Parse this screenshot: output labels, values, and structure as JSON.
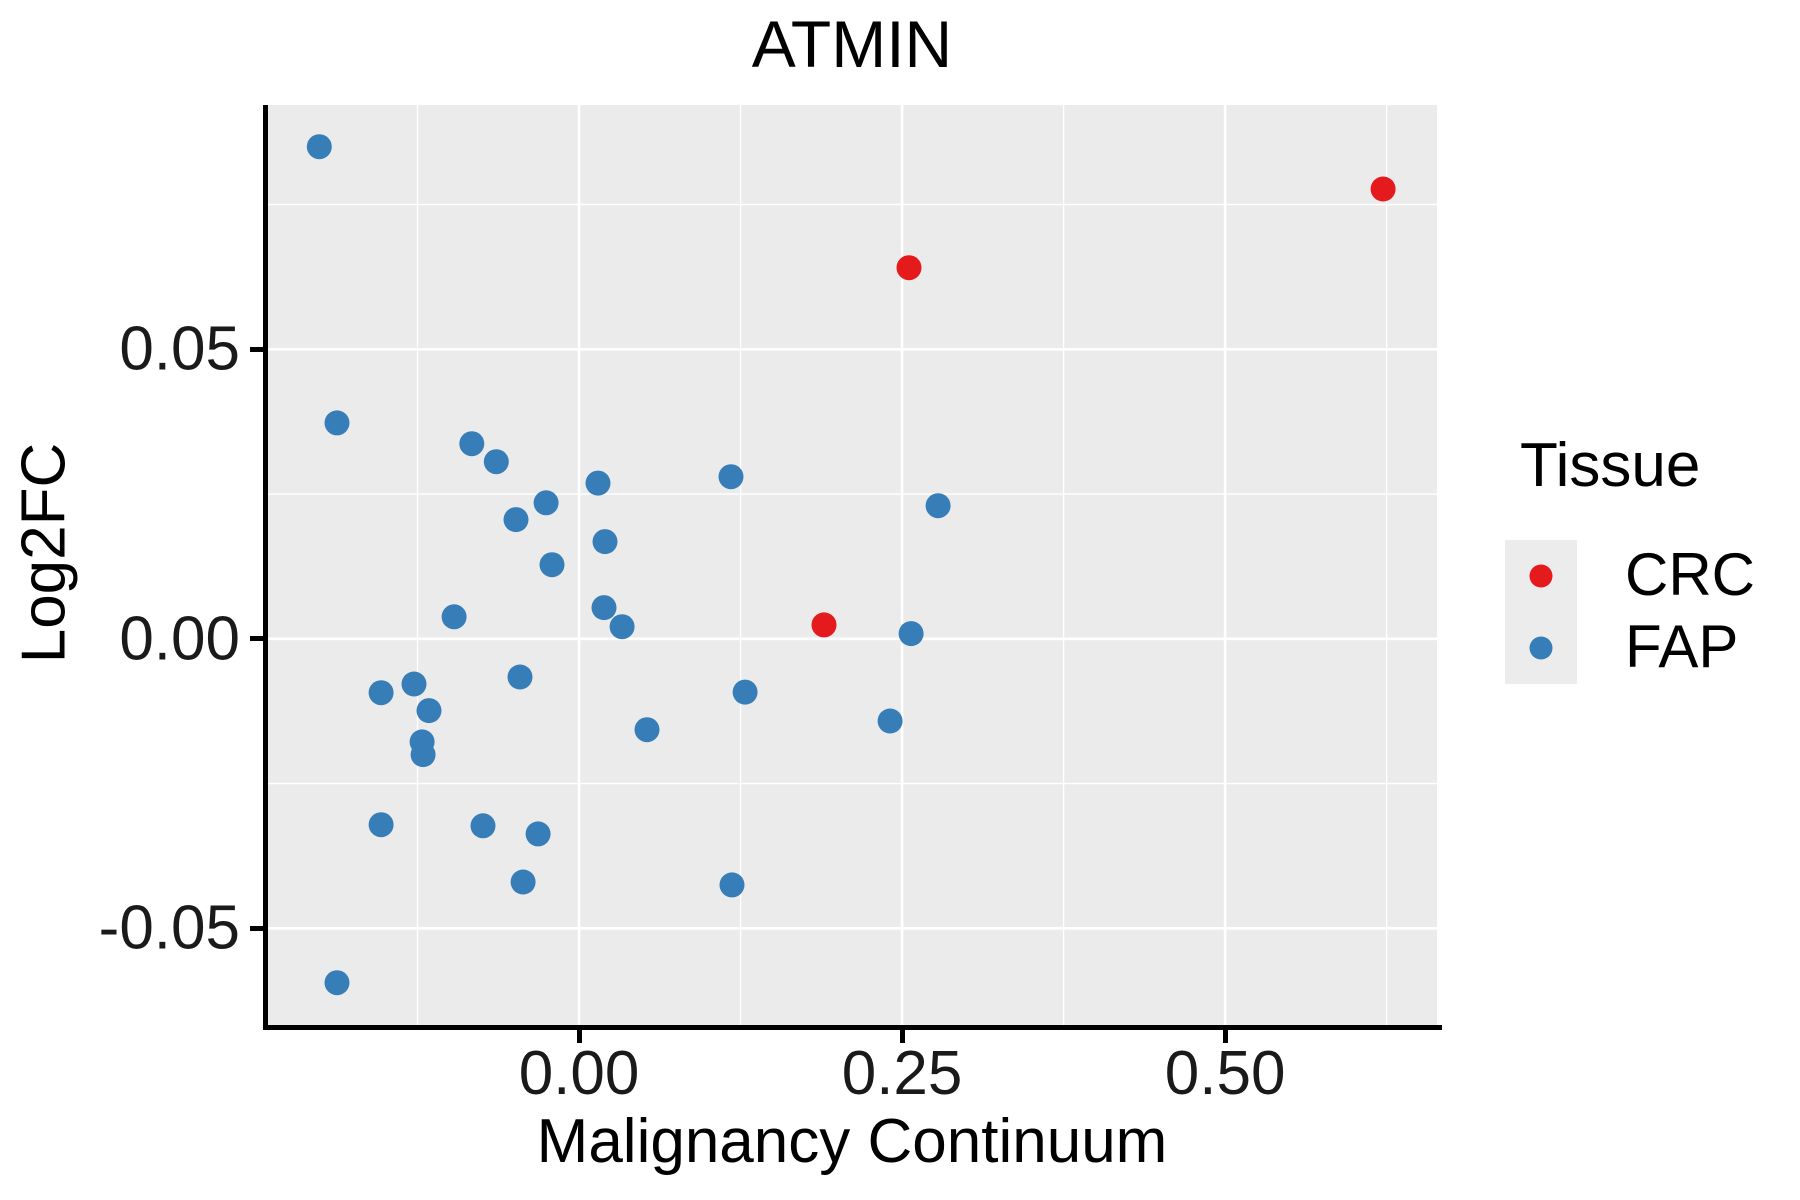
{
  "title": "ATMIN",
  "legend": {
    "title": "Tissue",
    "items": [
      {
        "label": "CRC",
        "color": "#E41A1C"
      },
      {
        "label": "FAP",
        "color": "#377EB8"
      }
    ]
  },
  "theme": {
    "panel_background": "#EBEBEB",
    "gridline_color": "#FFFFFF",
    "axis_line_color": "#000000",
    "crc_color": "#E41A1C",
    "fap_color": "#377EB8"
  },
  "chart_data": {
    "type": "scatter",
    "title": "ATMIN",
    "xlabel": "Malignancy Continuum",
    "ylabel": "Log2FC",
    "xlim": [
      -0.2415,
      0.664
    ],
    "ylim": [
      -0.0667,
      0.0922
    ],
    "grid": true,
    "legend_position": "right",
    "x_major_ticks": [
      0.0,
      0.25,
      0.5
    ],
    "x_tick_labels": [
      "0.00",
      "0.25",
      "0.50"
    ],
    "x_minor_gridlines": [
      -0.125,
      0.125,
      0.375,
      0.625
    ],
    "y_major_ticks": [
      0.05,
      0.0,
      -0.05
    ],
    "y_tick_labels": [
      "0.05",
      "0.00",
      "-0.05"
    ],
    "y_minor_gridlines": [
      0.075,
      0.025,
      -0.025
    ],
    "point_radius_px": 12.5,
    "series": [
      {
        "name": "CRC",
        "color": "#E41A1C",
        "points": [
          [
            0.1896,
            0.0024
          ],
          [
            0.2554,
            0.0641
          ],
          [
            0.6223,
            0.0777
          ]
        ]
      },
      {
        "name": "FAP",
        "color": "#377EB8",
        "points": [
          [
            -0.201,
            0.085
          ],
          [
            -0.1873,
            0.0373
          ],
          [
            -0.083,
            0.0337
          ],
          [
            -0.064,
            0.0306
          ],
          [
            0.0147,
            0.0269
          ],
          [
            -0.0255,
            0.0235
          ],
          [
            -0.0488,
            0.0206
          ],
          [
            0.0201,
            0.0168
          ],
          [
            -0.0209,
            0.0128
          ],
          [
            0.0193,
            0.0054
          ],
          [
            0.0333,
            0.0021
          ],
          [
            -0.0967,
            0.0038
          ],
          [
            -0.0457,
            -0.0066
          ],
          [
            -0.1532,
            -0.0093
          ],
          [
            -0.1277,
            -0.0078
          ],
          [
            -0.1161,
            -0.0124
          ],
          [
            -0.1215,
            -0.0178
          ],
          [
            -0.1207,
            -0.02
          ],
          [
            0.0526,
            -0.0157
          ],
          [
            -0.1532,
            -0.0321
          ],
          [
            -0.0743,
            -0.0323
          ],
          [
            -0.0317,
            -0.0337
          ],
          [
            -0.0433,
            -0.042
          ],
          [
            -0.1873,
            -0.0594
          ],
          [
            0.1176,
            0.028
          ],
          [
            0.2779,
            0.023
          ],
          [
            0.257,
            0.0009
          ],
          [
            0.2407,
            -0.0142
          ],
          [
            0.1285,
            -0.0092
          ],
          [
            0.1184,
            -0.0425
          ]
        ]
      }
    ]
  }
}
